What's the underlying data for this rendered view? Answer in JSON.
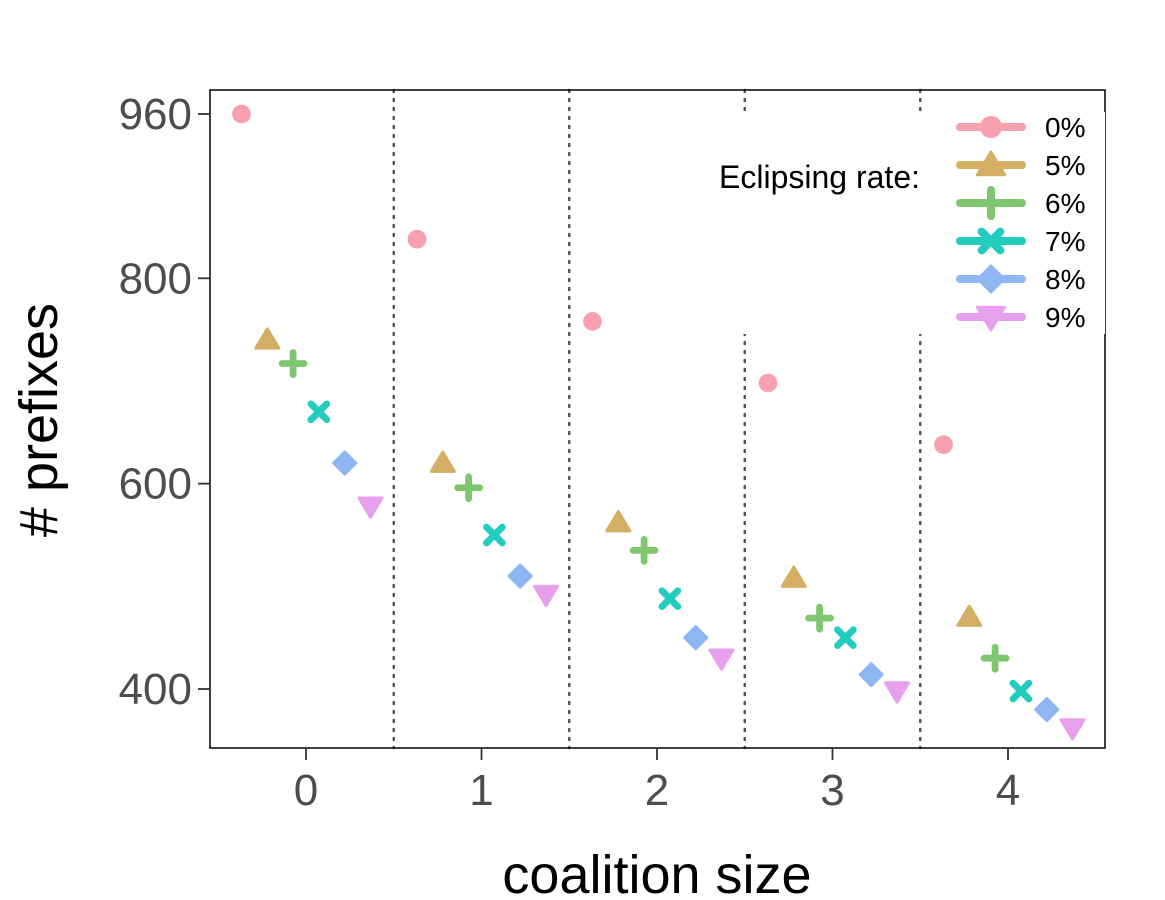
{
  "chart_data": {
    "type": "scatter",
    "xlabel": "coalition size",
    "ylabel": "# prefixes",
    "categories": [
      "0",
      "1",
      "2",
      "3",
      "4"
    ],
    "yticks": [
      400,
      600,
      800,
      960
    ],
    "ylim": [
      343,
      985
    ],
    "grid": "dotted vertical separators between coalition sizes",
    "legend": {
      "title": "Eclipsing rate:",
      "placement": "top-right"
    },
    "series": [
      {
        "name": "0%",
        "color": "#F8A0AE",
        "shape": "circle",
        "values": [
          960,
          838,
          758,
          698,
          638
        ]
      },
      {
        "name": "5%",
        "color": "#D4AE62",
        "shape": "triangle-up",
        "values": [
          740,
          620,
          562,
          508,
          470
        ]
      },
      {
        "name": "6%",
        "color": "#80C66F",
        "shape": "plus",
        "values": [
          717,
          596,
          535,
          469,
          430
        ]
      },
      {
        "name": "7%",
        "color": "#22CCBE",
        "shape": "cross",
        "values": [
          670,
          550,
          488,
          450,
          398
        ]
      },
      {
        "name": "8%",
        "color": "#8DB6F2",
        "shape": "diamond",
        "values": [
          620,
          510,
          450,
          414,
          380
        ]
      },
      {
        "name": "9%",
        "color": "#E8A0EE",
        "shape": "triangle-down",
        "values": [
          578,
          492,
          430,
          398,
          362
        ]
      }
    ]
  }
}
